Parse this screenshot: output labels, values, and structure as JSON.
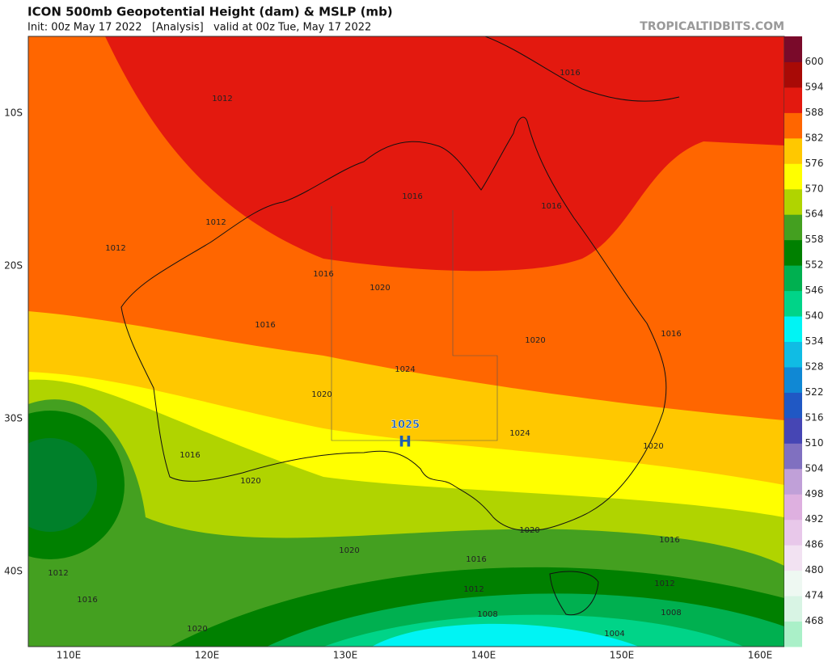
{
  "header": {
    "title": "ICON 500mb Geopotential Height (dam) & MSLP (mb)",
    "subtitle": "Init: 00z May 17 2022   [Analysis]   valid at 00z Tue, May 17 2022",
    "watermark": "TROPICALTIDBITS.COM"
  },
  "map": {
    "latitude_labels": [
      "10S",
      "20S",
      "30S",
      "40S"
    ],
    "longitude_labels": [
      "110E",
      "120E",
      "130E",
      "140E",
      "150E",
      "160E"
    ],
    "isobar_labels": [
      "1016",
      "1012",
      "1016",
      "1016",
      "1012",
      "1012",
      "1016",
      "1020",
      "1016",
      "1020",
      "1016",
      "1024",
      "1020",
      "1024",
      "1020",
      "1016",
      "1020",
      "1020",
      "1016",
      "1020",
      "1016",
      "1012",
      "1012",
      "1012",
      "1016",
      "1008",
      "1008",
      "1020",
      "1004"
    ],
    "high": {
      "pressure": "1025",
      "symbol": "H"
    }
  },
  "colorbar": {
    "levels": [
      468,
      474,
      480,
      486,
      492,
      498,
      504,
      510,
      516,
      522,
      528,
      534,
      540,
      546,
      552,
      558,
      564,
      570,
      576,
      582,
      588,
      594,
      600
    ],
    "colors": [
      "#aaf0c8",
      "#d8f4e4",
      "#eef8f2",
      "#f2e2f2",
      "#e8c8ea",
      "#deb0e0",
      "#c0a0d8",
      "#8070c0",
      "#4646b4",
      "#2058c4",
      "#1088d4",
      "#10bce4",
      "#00f4f4",
      "#00d488",
      "#00b050",
      "#008000",
      "#44a020",
      "#b0d400",
      "#ffff00",
      "#ffc800",
      "#ff6600",
      "#e3190f",
      "#a80a06",
      "#7a0a2a"
    ]
  }
}
